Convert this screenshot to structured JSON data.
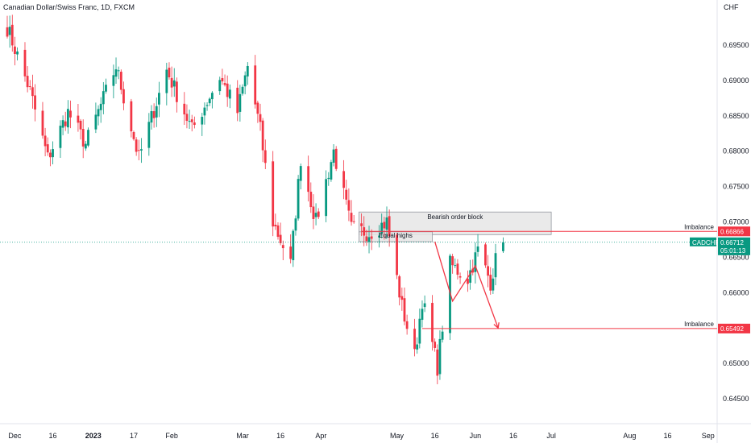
{
  "header": {
    "title": "Canadian Dollar/Swiss Franc, 1D, FXCM",
    "currency": "CHF"
  },
  "colors": {
    "up": "#089981",
    "down": "#f23645",
    "zone_fill": "#e6e6e6",
    "zone_stroke": "#9598a1",
    "imbalance_line": "#f23645",
    "price_line": "#089981",
    "projection": "#f23645"
  },
  "chart_data": {
    "type": "candlestick",
    "symbol": "CADCHF",
    "timeframe": "1D",
    "source": "FXCM",
    "ylim": [
      0.6425,
      0.6995
    ],
    "x_range": [
      "2022-11-28",
      "2023-09-03"
    ],
    "y_ticks": [
      0.695,
      0.69,
      0.685,
      0.68,
      0.675,
      0.67,
      0.665,
      0.66,
      0.655,
      0.65,
      0.645
    ],
    "x_ticks": [
      {
        "label": "Dec",
        "date": "2022-12-01",
        "bold": false
      },
      {
        "label": "16",
        "date": "2022-12-16",
        "bold": false
      },
      {
        "label": "2023",
        "date": "2023-01-01",
        "bold": true
      },
      {
        "label": "17",
        "date": "2023-01-17",
        "bold": false
      },
      {
        "label": "Feb",
        "date": "2023-02-01",
        "bold": false
      },
      {
        "label": "Mar",
        "date": "2023-03-01",
        "bold": false
      },
      {
        "label": "16",
        "date": "2023-03-16",
        "bold": false
      },
      {
        "label": "Apr",
        "date": "2023-04-01",
        "bold": false
      },
      {
        "label": "May",
        "date": "2023-05-01",
        "bold": false
      },
      {
        "label": "16",
        "date": "2023-05-16",
        "bold": false
      },
      {
        "label": "Jun",
        "date": "2023-06-01",
        "bold": false
      },
      {
        "label": "16",
        "date": "2023-06-16",
        "bold": false
      },
      {
        "label": "Jul",
        "date": "2023-07-01",
        "bold": false
      },
      {
        "label": "Aug",
        "date": "2023-08-01",
        "bold": false
      },
      {
        "label": "16",
        "date": "2023-08-16",
        "bold": false
      },
      {
        "label": "Sep",
        "date": "2023-09-01",
        "bold": false
      }
    ],
    "keypoints": [
      {
        "date": "2022-11-28",
        "price": 0.6975
      },
      {
        "date": "2022-12-07",
        "price": 0.6885
      },
      {
        "date": "2022-12-14",
        "price": 0.679
      },
      {
        "date": "2022-12-22",
        "price": 0.6855
      },
      {
        "date": "2022-12-29",
        "price": 0.681
      },
      {
        "date": "2023-01-10",
        "price": 0.692
      },
      {
        "date": "2023-01-19",
        "price": 0.679
      },
      {
        "date": "2023-01-30",
        "price": 0.6915
      },
      {
        "date": "2023-02-09",
        "price": 0.683
      },
      {
        "date": "2023-02-20",
        "price": 0.6905
      },
      {
        "date": "2023-02-27",
        "price": 0.6855
      },
      {
        "date": "2023-03-03",
        "price": 0.692
      },
      {
        "date": "2023-03-08",
        "price": 0.683
      },
      {
        "date": "2023-03-13",
        "price": 0.67
      },
      {
        "date": "2023-03-20",
        "price": 0.664
      },
      {
        "date": "2023-03-24",
        "price": 0.679
      },
      {
        "date": "2023-03-30",
        "price": 0.67
      },
      {
        "date": "2023-04-06",
        "price": 0.68
      },
      {
        "date": "2023-04-13",
        "price": 0.669
      },
      {
        "date": "2023-04-20",
        "price": 0.6685
      },
      {
        "date": "2023-04-27",
        "price": 0.67
      },
      {
        "date": "2023-05-03",
        "price": 0.658
      },
      {
        "date": "2023-05-08",
        "price": 0.651
      },
      {
        "date": "2023-05-11",
        "price": 0.659
      },
      {
        "date": "2023-05-17",
        "price": 0.6495
      },
      {
        "date": "2023-05-22",
        "price": 0.664
      },
      {
        "date": "2023-05-29",
        "price": 0.662
      },
      {
        "date": "2023-06-02",
        "price": 0.666
      },
      {
        "date": "2023-06-07",
        "price": 0.6615
      },
      {
        "date": "2023-06-09",
        "price": 0.6645
      },
      {
        "date": "2023-06-12",
        "price": 0.6671
      }
    ],
    "last_price": {
      "symbol": "CADCHF",
      "value": "0.66712",
      "countdown": "05:01:13",
      "price": 0.66712
    },
    "levels": [
      {
        "label": "Imbalance",
        "value": "0.66866",
        "price": 0.66866,
        "from_date": "2023-04-17"
      },
      {
        "label": "Imbalance",
        "value": "0.65492",
        "price": 0.65492,
        "from_date": "2023-05-11"
      }
    ],
    "zones": [
      {
        "label": "Bearish order block",
        "from_date": "2023-04-16",
        "to_date": "2023-07-01",
        "low": 0.6682,
        "high": 0.6714
      },
      {
        "label": "Equal highs",
        "from_date": "2023-04-16",
        "to_date": "2023-05-15",
        "low": 0.6672,
        "high": 0.6686
      }
    ],
    "projection": [
      {
        "date": "2023-05-16",
        "price": 0.6672
      },
      {
        "date": "2023-05-23",
        "price": 0.6588
      },
      {
        "date": "2023-06-01",
        "price": 0.6638
      },
      {
        "date": "2023-06-10",
        "price": 0.655
      }
    ]
  }
}
